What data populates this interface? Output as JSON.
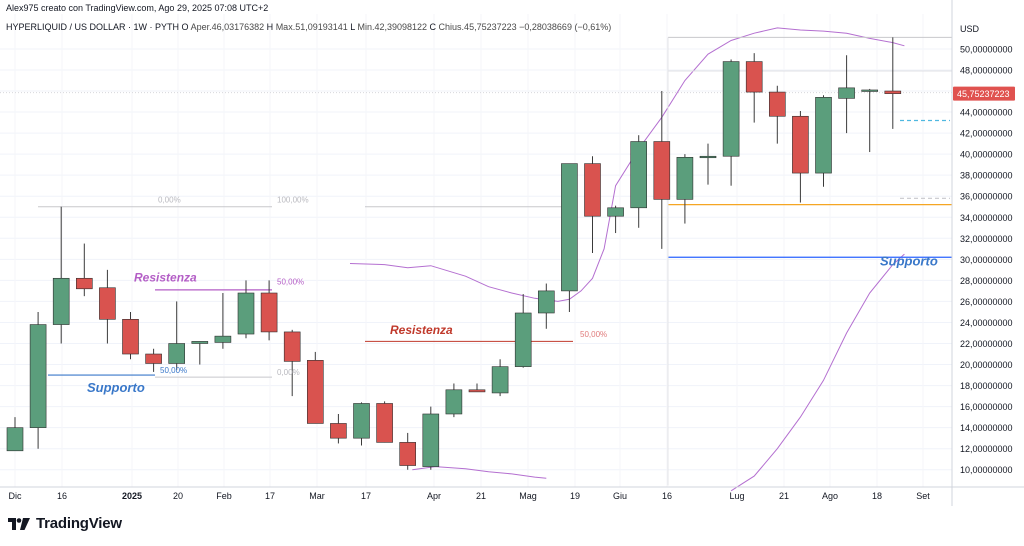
{
  "header": {
    "author_line": "Alex975 creato con TradingView.com, Ago 29, 2025 07:08 UTC+2"
  },
  "symbol": {
    "name": "HYPERLIQUID / US DOLLAR · 1W · PYTH",
    "open_label": "O",
    "open_value": "Aper.46,03176382",
    "high_label": "H",
    "high_value": "Max.51,09193141",
    "low_label": "L",
    "low_value": "Min.42,39098122",
    "close_label": "C",
    "close_value": "Chius.45,75237223",
    "change": "−0,28038669 (−0,61%)"
  },
  "brand": {
    "name": "TradingView",
    "icon": "tradingview-logo-icon"
  },
  "colors": {
    "up": "#5b9e7c",
    "down": "#d9534f",
    "bollinger": "#b46fd0",
    "resistance_purple": "#b45ec6",
    "resistance_red": "#c0392b",
    "support_blue": "#3a78c9",
    "orange_level": "#f5a623",
    "dashed_cyan": "#4fb8e0",
    "price_tag": "#e0524f"
  },
  "chart_data": {
    "type": "candlestick",
    "currency": "USD",
    "ylim": [
      8.5,
      53.5
    ],
    "y_ticks": [
      "10,00000000",
      "12,00000000",
      "14,00000000",
      "16,00000000",
      "18,00000000",
      "20,00000000",
      "22,00000000",
      "24,00000000",
      "26,00000000",
      "28,00000000",
      "30,00000000",
      "32,00000000",
      "34,00000000",
      "36,00000000",
      "38,00000000",
      "40,00000000",
      "42,00000000",
      "44,00000000",
      "46,00000000",
      "48,00000000",
      "50,00000000"
    ],
    "x_ticks": [
      "Dic",
      "16",
      "2025",
      "20",
      "Feb",
      "17",
      "Mar",
      "17",
      "Apr",
      "21",
      "Mag",
      "19",
      "Giu",
      "16",
      "Lug",
      "21",
      "Ago",
      "18",
      "Set"
    ],
    "last_price": "45,75237223",
    "last_price_value": 45.75,
    "candles": [
      {
        "o": 11.8,
        "h": 15.0,
        "l": 12.0,
        "c": 14.0
      },
      {
        "o": 14.0,
        "h": 25.0,
        "l": 12.0,
        "c": 23.8
      },
      {
        "o": 23.8,
        "h": 35.0,
        "l": 22.0,
        "c": 28.2
      },
      {
        "o": 28.2,
        "h": 31.5,
        "l": 26.5,
        "c": 27.2
      },
      {
        "o": 27.3,
        "h": 29.0,
        "l": 22.0,
        "c": 24.3
      },
      {
        "o": 24.3,
        "h": 25.0,
        "l": 20.5,
        "c": 21.0
      },
      {
        "o": 21.0,
        "h": 21.5,
        "l": 19.3,
        "c": 20.1
      },
      {
        "o": 20.1,
        "h": 26.0,
        "l": 19.5,
        "c": 22.0
      },
      {
        "o": 22.0,
        "h": 22.2,
        "l": 20.0,
        "c": 22.2
      },
      {
        "o": 22.1,
        "h": 26.8,
        "l": 21.5,
        "c": 22.7
      },
      {
        "o": 22.9,
        "h": 28.0,
        "l": 22.5,
        "c": 26.8
      },
      {
        "o": 26.8,
        "h": 28.0,
        "l": 22.3,
        "c": 23.1
      },
      {
        "o": 23.1,
        "h": 23.3,
        "l": 17.0,
        "c": 20.3
      },
      {
        "o": 20.4,
        "h": 21.2,
        "l": 14.4,
        "c": 14.4
      },
      {
        "o": 14.4,
        "h": 15.3,
        "l": 12.5,
        "c": 13.0
      },
      {
        "o": 13.0,
        "h": 16.4,
        "l": 12.3,
        "c": 16.3
      },
      {
        "o": 16.3,
        "h": 16.5,
        "l": 12.6,
        "c": 12.6
      },
      {
        "o": 12.6,
        "h": 13.5,
        "l": 10.0,
        "c": 10.4
      },
      {
        "o": 10.3,
        "h": 16.0,
        "l": 10.0,
        "c": 15.3
      },
      {
        "o": 15.3,
        "h": 18.2,
        "l": 15.0,
        "c": 17.6
      },
      {
        "o": 17.6,
        "h": 18.2,
        "l": 17.4,
        "c": 17.4
      },
      {
        "o": 17.3,
        "h": 20.5,
        "l": 17.0,
        "c": 19.8
      },
      {
        "o": 19.8,
        "h": 26.7,
        "l": 19.7,
        "c": 24.9
      },
      {
        "o": 24.9,
        "h": 27.7,
        "l": 23.4,
        "c": 27.0
      },
      {
        "o": 27.0,
        "h": 38.8,
        "l": 25.0,
        "c": 39.1
      },
      {
        "o": 39.1,
        "h": 39.8,
        "l": 30.6,
        "c": 34.1
      },
      {
        "o": 34.1,
        "h": 35.1,
        "l": 32.5,
        "c": 34.9
      },
      {
        "o": 34.9,
        "h": 41.8,
        "l": 33.0,
        "c": 41.2
      },
      {
        "o": 41.2,
        "h": 46.0,
        "l": 31.0,
        "c": 35.7
      },
      {
        "o": 35.7,
        "h": 40.0,
        "l": 33.4,
        "c": 39.7
      },
      {
        "o": 39.7,
        "h": 41.0,
        "l": 37.1,
        "c": 39.8
      },
      {
        "o": 39.8,
        "h": 49.0,
        "l": 37.0,
        "c": 48.8
      },
      {
        "o": 48.8,
        "h": 49.6,
        "l": 43.0,
        "c": 45.9
      },
      {
        "o": 45.9,
        "h": 46.5,
        "l": 41.0,
        "c": 43.6
      },
      {
        "o": 43.6,
        "h": 44.1,
        "l": 35.4,
        "c": 38.2
      },
      {
        "o": 38.2,
        "h": 45.6,
        "l": 36.9,
        "c": 45.4
      },
      {
        "o": 45.3,
        "h": 49.4,
        "l": 42.0,
        "c": 46.3
      },
      {
        "o": 46.1,
        "h": 46.2,
        "l": 40.2,
        "c": 46.1
      },
      {
        "o": 46.0,
        "h": 51.1,
        "l": 42.4,
        "c": 45.75
      }
    ],
    "annotations": {
      "resistenza_1": "Resistenza",
      "resistenza_2": "Resistenza",
      "supporto_1": "Supporto",
      "supporto_2": "Supporto",
      "fib_0a": "0,00%",
      "fib_100": "100,00%",
      "fib_50a": "50,00%",
      "fib_50b": "50,00%",
      "fib_0b": "0,00%",
      "fib_50c": "50,00%"
    }
  }
}
